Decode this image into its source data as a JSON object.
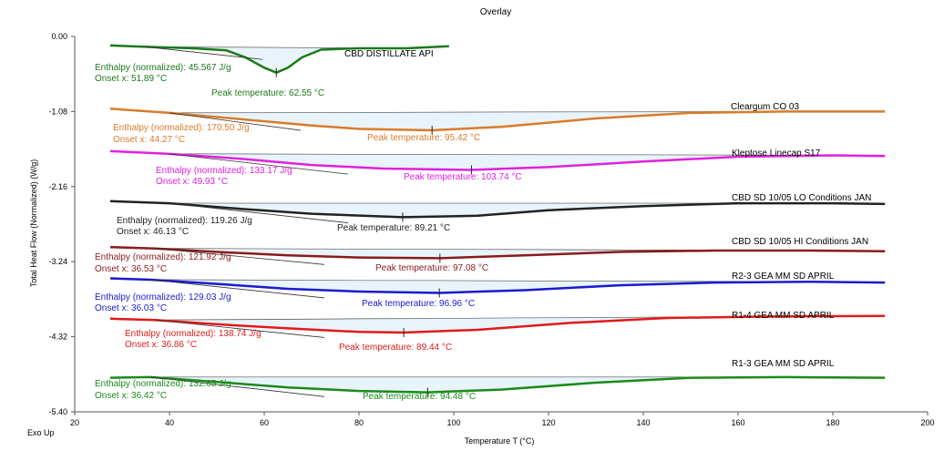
{
  "chart_data": {
    "type": "line",
    "title": "Overlay",
    "xlabel": "Temperature T (°C)",
    "ylabel": "Total Heat Flow (Normalized) (W/g)",
    "corner_label": "Exo Up",
    "xlim": [
      20,
      200
    ],
    "ylim": [
      -5.4,
      0.0
    ],
    "xticks": [
      20,
      40,
      60,
      80,
      100,
      120,
      140,
      160,
      180,
      200
    ],
    "yticks": [
      "0.00",
      "-1.08",
      "-2.16",
      "-3.24",
      "-4.32",
      "-5.40"
    ],
    "grid": false,
    "series": [
      {
        "name": "CBD DISTILLATE API",
        "color": "#1a7a1a",
        "points": [
          [
            27.5,
            -0.13
          ],
          [
            35,
            -0.15
          ],
          [
            45,
            -0.17
          ],
          [
            52,
            -0.2
          ],
          [
            56,
            -0.3
          ],
          [
            60,
            -0.45
          ],
          [
            62.55,
            -0.52
          ],
          [
            65,
            -0.45
          ],
          [
            68,
            -0.3
          ],
          [
            72,
            -0.19
          ],
          [
            80,
            -0.17
          ],
          [
            90,
            -0.17
          ],
          [
            99,
            -0.14
          ]
        ],
        "annotations": {
          "enthalpy": "Enthalpy (normalized): 45.567 J/g",
          "onset": "Onset x: 51.89 °C",
          "peak": "Peak temperature: 62.55 °C"
        }
      },
      {
        "name": "Cleargum CO 03",
        "color": "#d97b29",
        "points": [
          [
            27.5,
            -1.04
          ],
          [
            40,
            -1.1
          ],
          [
            50,
            -1.16
          ],
          [
            60,
            -1.22
          ],
          [
            70,
            -1.28
          ],
          [
            80,
            -1.33
          ],
          [
            95.42,
            -1.35
          ],
          [
            110,
            -1.3
          ],
          [
            130,
            -1.18
          ],
          [
            150,
            -1.1
          ],
          [
            170,
            -1.08
          ],
          [
            191,
            -1.08
          ]
        ],
        "annotations": {
          "enthalpy": "Enthalpy (normalized): 170.50 J/g",
          "onset": "Onset x: 44.27 °C",
          "peak": "Peak temperature: 95.42 °C"
        }
      },
      {
        "name": "Kleptose Linecap S17",
        "color": "#e020e0",
        "points": [
          [
            27.5,
            -1.65
          ],
          [
            40,
            -1.69
          ],
          [
            55,
            -1.76
          ],
          [
            70,
            -1.85
          ],
          [
            85,
            -1.9
          ],
          [
            103.74,
            -1.92
          ],
          [
            120,
            -1.88
          ],
          [
            140,
            -1.8
          ],
          [
            160,
            -1.73
          ],
          [
            180,
            -1.71
          ],
          [
            191,
            -1.72
          ]
        ],
        "annotations": {
          "enthalpy": "Enthalpy (normalized): 133.17 J/g",
          "onset": "Onset x: 49.93 °C",
          "peak": "Peak temperature: 103.74 °C"
        }
      },
      {
        "name": "CBD SD 10/05 LO Conditions JAN",
        "color": "#222222",
        "points": [
          [
            27.5,
            -2.37
          ],
          [
            40,
            -2.4
          ],
          [
            55,
            -2.48
          ],
          [
            70,
            -2.55
          ],
          [
            89.21,
            -2.6
          ],
          [
            105,
            -2.58
          ],
          [
            120,
            -2.5
          ],
          [
            140,
            -2.44
          ],
          [
            160,
            -2.4
          ],
          [
            180,
            -2.4
          ],
          [
            191,
            -2.41
          ]
        ],
        "annotations": {
          "enthalpy": "Enthalpy (normalized): 119.26 J/g",
          "onset": "Onset x: 46.13 °C",
          "peak": "Peak temperature: 89.21 °C"
        }
      },
      {
        "name": "CBD SD 10/05 HI Conditions JAN",
        "color": "#8b1a1a",
        "points": [
          [
            27.5,
            -3.03
          ],
          [
            37,
            -3.05
          ],
          [
            50,
            -3.1
          ],
          [
            65,
            -3.15
          ],
          [
            80,
            -3.18
          ],
          [
            97.08,
            -3.19
          ],
          [
            115,
            -3.15
          ],
          [
            135,
            -3.1
          ],
          [
            155,
            -3.08
          ],
          [
            175,
            -3.08
          ],
          [
            191,
            -3.09
          ]
        ],
        "annotations": {
          "enthalpy": "Enthalpy (normalized): 121.92 J/g",
          "onset": "Onset x: 36.53 °C",
          "peak": "Peak temperature: 97.08 °C"
        }
      },
      {
        "name": "R2-3 GEA MM SD APRIL",
        "color": "#1a1ad0",
        "points": [
          [
            27.5,
            -3.48
          ],
          [
            36,
            -3.5
          ],
          [
            50,
            -3.56
          ],
          [
            65,
            -3.63
          ],
          [
            80,
            -3.67
          ],
          [
            96.96,
            -3.69
          ],
          [
            115,
            -3.65
          ],
          [
            135,
            -3.58
          ],
          [
            155,
            -3.54
          ],
          [
            175,
            -3.53
          ],
          [
            191,
            -3.54
          ]
        ],
        "annotations": {
          "enthalpy": "Enthalpy (normalized): 129.03 J/g",
          "onset": "Onset x: 36.03 °C",
          "peak": "Peak temperature: 96.96 °C"
        }
      },
      {
        "name": "R1-4 GEA MM SD APRIL",
        "color": "#e01a1a",
        "points": [
          [
            27.5,
            -4.06
          ],
          [
            37,
            -4.08
          ],
          [
            50,
            -4.14
          ],
          [
            65,
            -4.2
          ],
          [
            80,
            -4.25
          ],
          [
            89.44,
            -4.26
          ],
          [
            105,
            -4.22
          ],
          [
            125,
            -4.12
          ],
          [
            145,
            -4.05
          ],
          [
            165,
            -4.03
          ],
          [
            191,
            -4.02
          ]
        ],
        "annotations": {
          "enthalpy": "Enthalpy (normalized): 138.74 J/g",
          "onset": "Onset x: 36.86 °C",
          "peak": "Peak temperature: 89.44 °C"
        }
      },
      {
        "name": "R1-3 GEA MM SD APRIL",
        "color": "#1a8a1a",
        "points": [
          [
            27.5,
            -4.91
          ],
          [
            36,
            -4.9
          ],
          [
            50,
            -4.97
          ],
          [
            65,
            -5.05
          ],
          [
            80,
            -5.1
          ],
          [
            94.48,
            -5.12
          ],
          [
            110,
            -5.08
          ],
          [
            130,
            -4.98
          ],
          [
            150,
            -4.91
          ],
          [
            170,
            -4.9
          ],
          [
            191,
            -4.91
          ]
        ],
        "annotations": {
          "enthalpy": "Enthalpy (normalized): 132.65 J/g",
          "onset": "Onset x: 36.42 °C",
          "peak": "Peak temperature: 94.48 °C"
        }
      }
    ]
  }
}
